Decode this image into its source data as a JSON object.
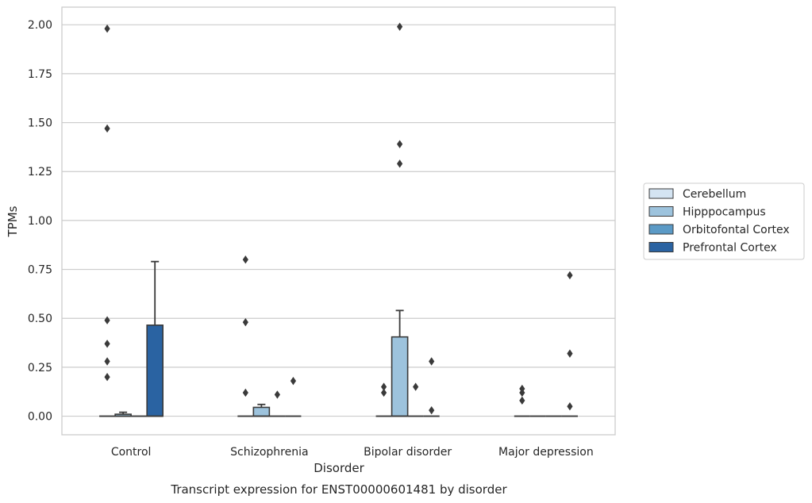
{
  "chart_data": {
    "type": "box",
    "caption": "Transcript expression for ENST00000601481 by disorder",
    "xlabel": "Disorder",
    "ylabel": "TPMs",
    "ylim": [
      -0.095,
      2.09
    ],
    "yticks": [
      0.0,
      0.25,
      0.5,
      0.75,
      1.0,
      1.25,
      1.5,
      1.75,
      2.0
    ],
    "ytick_labels": [
      "0.00",
      "0.25",
      "0.50",
      "0.75",
      "1.00",
      "1.25",
      "1.50",
      "1.75",
      "2.00"
    ],
    "grid": true,
    "legend_position": "right, outside plot",
    "categories": [
      "Control",
      "Schizophrenia",
      "Bipolar disorder",
      "Major depression"
    ],
    "series": [
      {
        "name": "Cerebellum",
        "color": "#d4e4f2",
        "boxes": [
          {
            "q1": 0,
            "median": 0,
            "q3": 0,
            "whisker_low": 0,
            "whisker_high": 0,
            "outliers": [
              0.2,
              0.28,
              0.37,
              0.49,
              1.47,
              1.98
            ]
          },
          {
            "q1": 0,
            "median": 0,
            "q3": 0,
            "whisker_low": 0,
            "whisker_high": 0,
            "outliers": [
              0.12,
              0.48,
              0.8
            ]
          },
          {
            "q1": 0,
            "median": 0,
            "q3": 0,
            "whisker_low": 0,
            "whisker_high": 0,
            "outliers": [
              0.12,
              0.15
            ]
          },
          {
            "q1": 0,
            "median": 0,
            "q3": 0,
            "whisker_low": 0,
            "whisker_high": 0,
            "outliers": [
              0.08,
              0.12,
              0.14
            ]
          }
        ]
      },
      {
        "name": "Hipppocampus",
        "color": "#9dc3dd",
        "boxes": [
          {
            "q1": 0,
            "median": 0,
            "q3": 0.01,
            "whisker_low": 0,
            "whisker_high": 0.02,
            "outliers": []
          },
          {
            "q1": 0,
            "median": 0,
            "q3": 0.045,
            "whisker_low": 0,
            "whisker_high": 0.06,
            "outliers": []
          },
          {
            "q1": 0,
            "median": 0,
            "q3": 0.405,
            "whisker_low": 0,
            "whisker_high": 0.54,
            "outliers": [
              1.29,
              1.39,
              1.99
            ]
          },
          {
            "q1": 0,
            "median": 0,
            "q3": 0,
            "whisker_low": 0,
            "whisker_high": 0,
            "outliers": []
          }
        ]
      },
      {
        "name": "Orbitofontal Cortex",
        "color": "#5b9ac6",
        "boxes": [
          {
            "q1": 0,
            "median": 0,
            "q3": 0,
            "whisker_low": 0,
            "whisker_high": 0,
            "outliers": []
          },
          {
            "q1": 0,
            "median": 0,
            "q3": 0,
            "whisker_low": 0,
            "whisker_high": 0,
            "outliers": [
              0.11
            ]
          },
          {
            "q1": 0,
            "median": 0,
            "q3": 0,
            "whisker_low": 0,
            "whisker_high": 0,
            "outliers": [
              0.15
            ]
          },
          {
            "q1": 0,
            "median": 0,
            "q3": 0,
            "whisker_low": 0,
            "whisker_high": 0,
            "outliers": []
          }
        ]
      },
      {
        "name": "Prefrontal Cortex",
        "color": "#2a63a2",
        "boxes": [
          {
            "q1": 0,
            "median": 0,
            "q3": 0.465,
            "whisker_low": 0,
            "whisker_high": 0.79,
            "outliers": []
          },
          {
            "q1": 0,
            "median": 0,
            "q3": 0,
            "whisker_low": 0,
            "whisker_high": 0,
            "outliers": [
              0.18
            ]
          },
          {
            "q1": 0,
            "median": 0,
            "q3": 0,
            "whisker_low": 0,
            "whisker_high": 0,
            "outliers": [
              0.03,
              0.28
            ]
          },
          {
            "q1": 0,
            "median": 0,
            "q3": 0,
            "whisker_low": 0,
            "whisker_high": 0,
            "outliers": [
              0.05,
              0.32,
              0.72
            ]
          }
        ]
      }
    ]
  }
}
